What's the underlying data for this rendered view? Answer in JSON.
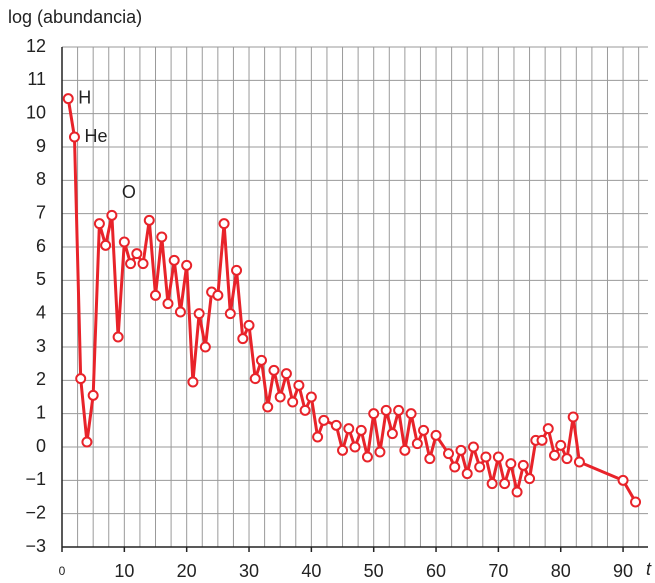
{
  "chart_data": {
    "type": "line",
    "y_axis_label": "log (abundancia)",
    "x_axis_label": "t",
    "x": [
      1,
      2,
      3,
      4,
      5,
      6,
      7,
      8,
      9,
      10,
      11,
      12,
      13,
      14,
      15,
      16,
      17,
      18,
      19,
      20,
      21,
      22,
      23,
      24,
      25,
      26,
      27,
      28,
      29,
      30,
      31,
      32,
      33,
      34,
      35,
      36,
      37,
      38,
      39,
      40,
      41,
      42,
      44,
      45,
      46,
      47,
      48,
      49,
      50,
      51,
      52,
      53,
      54,
      55,
      56,
      57,
      58,
      59,
      60,
      62,
      63,
      64,
      65,
      66,
      67,
      68,
      69,
      70,
      71,
      72,
      73,
      74,
      75,
      76,
      77,
      78,
      79,
      80,
      81,
      82,
      83,
      90,
      92
    ],
    "series": [
      {
        "color": "#e8232a",
        "values": [
          10.45,
          9.3,
          2.05,
          0.15,
          1.55,
          6.7,
          6.05,
          6.95,
          3.3,
          6.15,
          5.5,
          5.8,
          5.5,
          6.8,
          4.55,
          6.3,
          4.3,
          5.6,
          4.05,
          5.45,
          1.95,
          4.0,
          3.0,
          4.65,
          4.55,
          6.7,
          4.0,
          5.3,
          3.25,
          3.65,
          2.05,
          2.6,
          1.2,
          2.3,
          1.5,
          2.2,
          1.35,
          1.85,
          1.1,
          1.5,
          0.3,
          0.8,
          0.65,
          -0.1,
          0.55,
          0.0,
          0.5,
          -0.3,
          1.0,
          -0.15,
          1.1,
          0.4,
          1.1,
          -0.1,
          1.0,
          0.1,
          0.5,
          -0.35,
          0.35,
          -0.2,
          -0.6,
          -0.1,
          -0.8,
          0.0,
          -0.6,
          -0.3,
          -1.1,
          -0.3,
          -1.1,
          -0.5,
          -1.35,
          -0.55,
          -0.95,
          0.2,
          0.2,
          0.55,
          -0.25,
          0.05,
          -0.35,
          0.9,
          -0.45,
          -1.0,
          -1.65
        ]
      }
    ],
    "annotations": [
      {
        "label": "H",
        "x": 1
      },
      {
        "label": "He",
        "x": 2
      },
      {
        "label": "O",
        "x": 8
      }
    ],
    "xlim": [
      0,
      94
    ],
    "ylim": [
      -3,
      12
    ],
    "xticks": [
      0,
      10,
      20,
      30,
      40,
      50,
      60,
      70,
      80,
      90
    ],
    "yticks": [
      {
        "value": -3,
        "label": "−3"
      },
      {
        "value": -2,
        "label": "−2"
      },
      {
        "value": -1,
        "label": "−1"
      },
      0,
      1,
      2,
      3,
      4,
      5,
      6,
      7,
      8,
      9,
      10,
      11,
      12
    ],
    "grid": true,
    "x_grid_step": 2.5
  }
}
